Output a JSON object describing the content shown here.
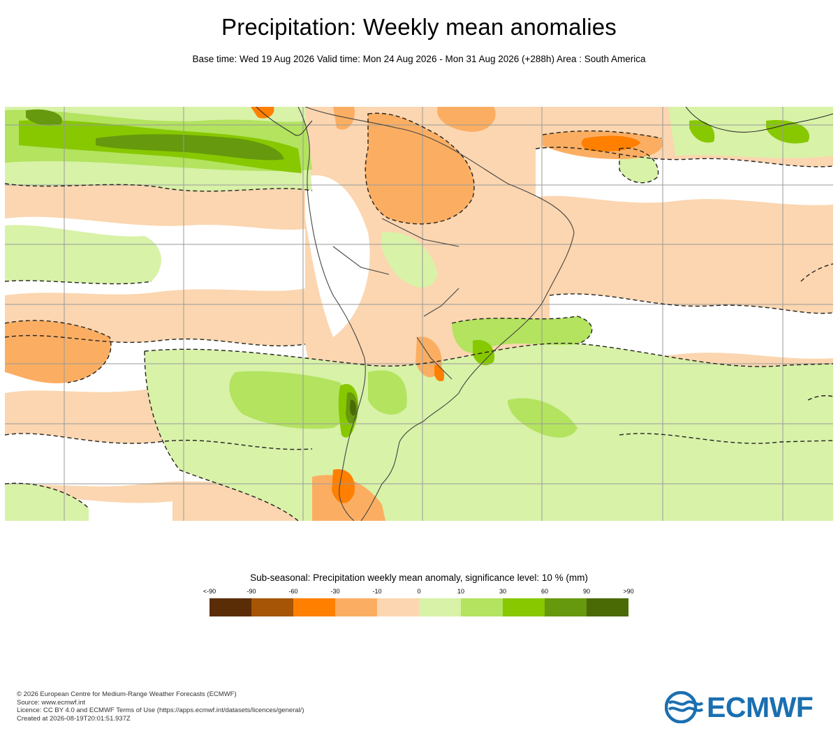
{
  "header": {
    "title": "Precipitation: Weekly mean anomalies",
    "subtitle": "Base time: Wed 19 Aug 2026 Valid time: Mon 24 Aug 2026 - Mon 31 Aug 2026 (+288h) Area : South America"
  },
  "map": {
    "region": "South America",
    "layer": "precipitation weekly mean anomaly",
    "contours": "dashed significance contour"
  },
  "legend": {
    "title": "Sub-seasonal: Precipitation weekly mean anomaly, significance level: 10 % (mm)",
    "ticks": [
      "<-90",
      "-90",
      "-60",
      "-30",
      "-10",
      "0",
      "10",
      "30",
      "60",
      "90",
      ">90"
    ],
    "colors": [
      "#5a2d06",
      "#a65405",
      "#ff8000",
      "#fbae62",
      "#fbd6b0",
      "#d8f2a8",
      "#b3e35f",
      "#87c800",
      "#66990d",
      "#4a6a05"
    ]
  },
  "footer": {
    "lines": [
      "© 2026 European Centre for Medium-Range Weather Forecasts (ECMWF)",
      "Source: www.ecmwf.int",
      "Licence: CC BY 4.0 and ECMWF Terms of Use (https://apps.ecmwf.int/datasets/licences/general/)",
      "Created at 2026-08-19T20:01:51.937Z"
    ]
  },
  "logo": {
    "text": "ECMWF",
    "color": "#1a6fb0"
  }
}
